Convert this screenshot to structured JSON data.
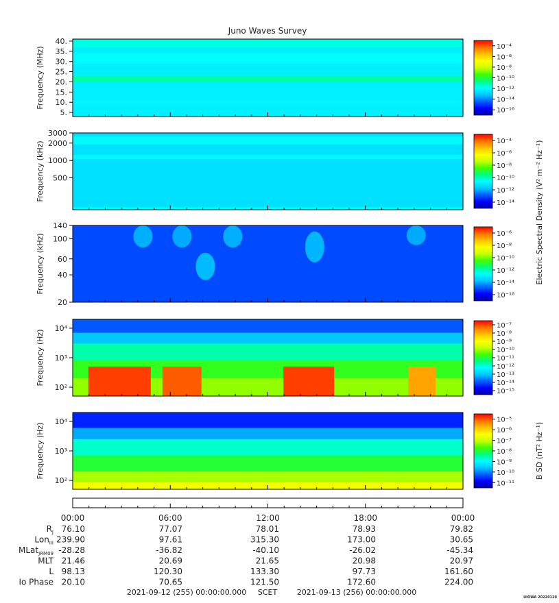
{
  "title": "Juno Waves Survey",
  "footer": {
    "start": "2021-09-12 (255) 00:00:00.000",
    "mid": "SCET",
    "end": "2021-09-13 (256) 00:00:00.000",
    "credit": "UIOWA 20220120"
  },
  "colors": {
    "colormap": [
      "#0000a0",
      "#0000ff",
      "#0060ff",
      "#00c8ff",
      "#00ffff",
      "#00ff80",
      "#40ff00",
      "#c8ff00",
      "#ffff00",
      "#ffc000",
      "#ff7000",
      "#ff0000"
    ],
    "axis": "#000000"
  },
  "colorbar_titles": {
    "efield": "Electric Spectral Density (V² m⁻² Hz⁻¹)",
    "bfield": "B SD (nT² Hz⁻¹)"
  },
  "chart_data": [
    {
      "type": "heatmap",
      "panel": "HFR high",
      "ylabel": "Frequency (MHz)",
      "yticks": [
        "40.",
        "35.",
        "30.",
        "25.",
        "20.",
        "15.",
        "10.",
        "5."
      ],
      "ytick_values": [
        40,
        35,
        30,
        25,
        20,
        15,
        10,
        5
      ],
      "ylim": [
        3,
        41
      ],
      "colorbar_ticks": [
        "10⁻⁴",
        "10⁻⁶",
        "10⁻⁸",
        "10⁻¹⁰",
        "10⁻¹²",
        "10⁻¹⁴",
        "10⁻¹⁶"
      ],
      "colorbar_range": [
        -17,
        -4
      ],
      "background_level": -12.6,
      "bands": [
        {
          "from": 37,
          "to": 41,
          "level": -12
        },
        {
          "from": 29,
          "to": 34,
          "level": -12.3
        },
        {
          "from": 20,
          "to": 23,
          "level": -11.3
        },
        {
          "from": 9,
          "to": 11,
          "level": -12.4
        }
      ]
    },
    {
      "type": "heatmap",
      "panel": "HFR low",
      "ylabel": "Frequency (kHz)",
      "yticks": [
        "3000",
        "2000",
        "1000",
        "500"
      ],
      "ytick_values": [
        3000,
        2000,
        1000,
        500
      ],
      "ylim": [
        140,
        3000
      ],
      "log_scale": true,
      "colorbar_ticks": [
        "10⁻⁴",
        "10⁻⁶",
        "10⁻⁸",
        "10⁻¹⁰",
        "10⁻¹²",
        "10⁻¹⁴"
      ],
      "colorbar_range": [
        -15,
        -3.5
      ],
      "background_level": -11.4,
      "bands": [
        {
          "from": 1900,
          "to": 2600,
          "level": -10.8
        },
        {
          "from": 1050,
          "to": 1250,
          "level": -10.9
        },
        {
          "from": 140,
          "to": 155,
          "level": -10.8
        }
      ]
    },
    {
      "type": "heatmap",
      "panel": "LFR high",
      "ylabel": "Frequency (kHz)",
      "yticks": [
        "140",
        "100",
        "60",
        "40",
        "20"
      ],
      "ytick_values": [
        140,
        100,
        60,
        40,
        20
      ],
      "ylim": [
        20,
        140
      ],
      "log_scale": true,
      "colorbar_ticks": [
        "10⁻⁶",
        "10⁻⁸",
        "10⁻¹⁰",
        "10⁻¹²",
        "10⁻¹⁴",
        "10⁻¹⁶"
      ],
      "colorbar_range": [
        -16.5,
        -6
      ],
      "background_level": -14.8,
      "bursts": [
        {
          "t": 0.18,
          "from": 80,
          "to": 140,
          "level": -13.5
        },
        {
          "t": 0.28,
          "from": 80,
          "to": 140,
          "level": -13.6
        },
        {
          "t": 0.34,
          "from": 35,
          "to": 70,
          "level": -13.2
        },
        {
          "t": 0.41,
          "from": 80,
          "to": 140,
          "level": -13.5
        },
        {
          "t": 0.62,
          "from": 55,
          "to": 120,
          "level": -13.3
        },
        {
          "t": 0.88,
          "from": 85,
          "to": 140,
          "level": -13.6
        }
      ]
    },
    {
      "type": "heatmap",
      "panel": "LFR low",
      "ylabel": "Frequency (Hz)",
      "yticks": [
        "10⁴",
        "10³",
        "10²"
      ],
      "ytick_values": [
        10000,
        1000,
        100
      ],
      "ylim": [
        50,
        20000
      ],
      "log_scale": true,
      "colorbar_ticks": [
        "10⁻⁷",
        "10⁻⁸",
        "10⁻⁹",
        "10⁻¹⁰",
        "10⁻¹¹",
        "10⁻¹²",
        "10⁻¹³",
        "10⁻¹⁴",
        "10⁻¹⁵"
      ],
      "colorbar_range": [
        -15,
        -7
      ],
      "profile": [
        {
          "from": 7000,
          "to": 20000,
          "level": -13.6
        },
        {
          "from": 3000,
          "to": 7000,
          "level": -12.8
        },
        {
          "from": 800,
          "to": 3000,
          "level": -11.6
        },
        {
          "from": 200,
          "to": 800,
          "level": -10.8
        },
        {
          "from": 50,
          "to": 200,
          "level": -10.2
        }
      ],
      "hot_intervals": [
        {
          "start": 0.04,
          "end": 0.2,
          "level": -7.4
        },
        {
          "start": 0.23,
          "end": 0.33,
          "level": -7.6
        },
        {
          "start": 0.54,
          "end": 0.67,
          "level": -7.4
        },
        {
          "start": 0.86,
          "end": 0.93,
          "level": -8.2
        }
      ]
    },
    {
      "type": "heatmap",
      "panel": "LFR magnetic",
      "ylabel": "Frequency (Hz)",
      "yticks": [
        "10⁴",
        "10³",
        "10²"
      ],
      "ytick_values": [
        10000,
        1000,
        100
      ],
      "ylim": [
        50,
        20000
      ],
      "log_scale": true,
      "colorbar_ticks": [
        "10⁻⁵",
        "10⁻⁶",
        "10⁻⁷",
        "10⁻⁸",
        "10⁻⁹",
        "10⁻¹⁰",
        "10⁻¹¹"
      ],
      "colorbar_range": [
        -11,
        -4.5
      ],
      "profile": [
        {
          "from": 6000,
          "to": 20000,
          "level": -10.2
        },
        {
          "from": 2500,
          "to": 6000,
          "level": -9.4
        },
        {
          "from": 700,
          "to": 2500,
          "level": -8.4
        },
        {
          "from": 200,
          "to": 700,
          "level": -7.7
        },
        {
          "from": 90,
          "to": 200,
          "level": -7.0
        },
        {
          "from": 50,
          "to": 90,
          "level": -6.4
        }
      ]
    }
  ],
  "time_axis": {
    "labels": [
      "00:00",
      "06:00",
      "12:00",
      "18:00",
      "00:00"
    ]
  },
  "ephemeris": {
    "rows": [
      {
        "name": "R",
        "sub": "J",
        "values": [
          "76.10",
          "77.07",
          "78.01",
          "78.93",
          "79.82"
        ]
      },
      {
        "name": "Lon",
        "sub": "III",
        "values": [
          "239.90",
          "97.61",
          "315.30",
          "173.00",
          "30.65"
        ]
      },
      {
        "name": "MLat",
        "sub": "JRM09",
        "values": [
          "-28.28",
          "-36.82",
          "-40.10",
          "-26.02",
          "-45.34"
        ]
      },
      {
        "name": "MLT",
        "sub": "",
        "values": [
          "21.46",
          "20.69",
          "21.65",
          "20.98",
          "20.97"
        ]
      },
      {
        "name": "L",
        "sub": "",
        "values": [
          "98.13",
          "120.30",
          "133.30",
          "97.73",
          "161.60"
        ]
      },
      {
        "name": "Io Phase",
        "sub": "",
        "values": [
          "20.10",
          "70.65",
          "121.50",
          "172.60",
          "224.00"
        ]
      }
    ]
  }
}
